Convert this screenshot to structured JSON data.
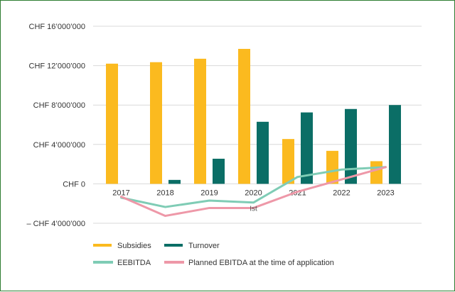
{
  "chart_data": {
    "type": "bar",
    "categories": [
      "2017",
      "2018",
      "2019",
      "2020",
      "2021",
      "2022",
      "2023"
    ],
    "y_tick_labels": [
      "CHF 16’000’000",
      "CHF 12’000’000",
      "CHF 8’000’000",
      "CHF 4’000’000",
      "CHF 0",
      "– CHF 4’000’000"
    ],
    "y_tick_values": [
      16000000,
      12000000,
      8000000,
      4000000,
      0,
      -4000000
    ],
    "ylim": [
      -4000000,
      16000000
    ],
    "grid": true,
    "legend_position": "bottom-left",
    "series": [
      {
        "name": "Subsidies",
        "kind": "bar",
        "color": "#FBBA1F",
        "values": [
          12200000,
          12350000,
          12700000,
          13700000,
          4550000,
          3350000,
          2300000
        ]
      },
      {
        "name": "Turnover",
        "kind": "bar",
        "color": "#0B6E66",
        "values": [
          0,
          400000,
          2550000,
          6300000,
          7250000,
          7600000,
          8000000
        ]
      },
      {
        "name": "EEBITDA",
        "kind": "line",
        "color": "#7FCCB5",
        "values": [
          -1400000,
          -2350000,
          -1700000,
          -1900000,
          700000,
          1450000,
          1700000
        ]
      },
      {
        "name": "Planned EBITDA at the time of application",
        "kind": "line",
        "color": "#EE98A8",
        "values": [
          -1300000,
          -3250000,
          -2450000,
          -2450000,
          -800000,
          450000,
          1700000
        ]
      }
    ],
    "annotations": [
      {
        "text": "Ist",
        "category": "2020",
        "value": -2450000
      }
    ]
  }
}
